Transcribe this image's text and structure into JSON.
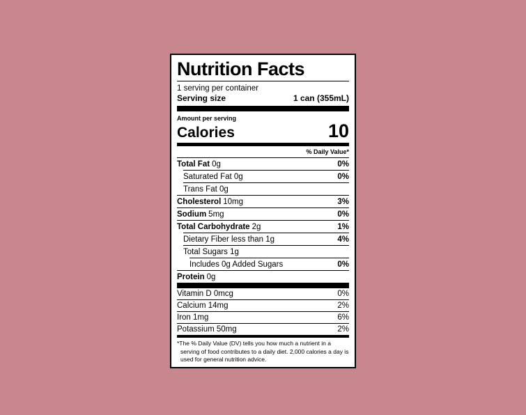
{
  "background_color": "#c8878e",
  "label": {
    "title": "Nutrition Facts",
    "servings_per_container": "1 serving per container",
    "serving_size_label": "Serving size",
    "serving_size_value": "1 can (355mL)",
    "amount_per_serving": "Amount per serving",
    "calories_label": "Calories",
    "calories_value": "10",
    "daily_value_header": "% Daily Value*",
    "nutrients": [
      {
        "name": "Total Fat",
        "amount": "0g",
        "dv": "0%"
      },
      {
        "name": "",
        "amount": "Saturated Fat 0g",
        "dv": "0%"
      },
      {
        "name": "",
        "amount": "Trans Fat 0g",
        "dv": ""
      },
      {
        "name": "Cholesterol",
        "amount": "10mg",
        "dv": "3%"
      },
      {
        "name": "Sodium",
        "amount": "5mg",
        "dv": "0%"
      },
      {
        "name": "Total Carbohydrate",
        "amount": "2g",
        "dv": "1%"
      },
      {
        "name": "",
        "amount": "Dietary Fiber less than 1g",
        "dv": "4%"
      },
      {
        "name": "",
        "amount": "Total Sugars 1g",
        "dv": ""
      },
      {
        "name": "",
        "amount": "Includes 0g Added Sugars",
        "dv": "0%"
      },
      {
        "name": "Protein",
        "amount": "0g",
        "dv": ""
      }
    ],
    "vitamins": [
      {
        "name": "Vitamin D 0mcg",
        "dv": "0%"
      },
      {
        "name": "Calcium 14mg",
        "dv": "2%"
      },
      {
        "name": "Iron 1mg",
        "dv": "6%"
      },
      {
        "name": "Potassium 50mg",
        "dv": "2%"
      }
    ],
    "footnote": "*The % Daily Value (DV) tells you how much a nutrient in a serving of food contributes to a daily diet. 2,000 calories a day is used for general nutrition advice."
  }
}
